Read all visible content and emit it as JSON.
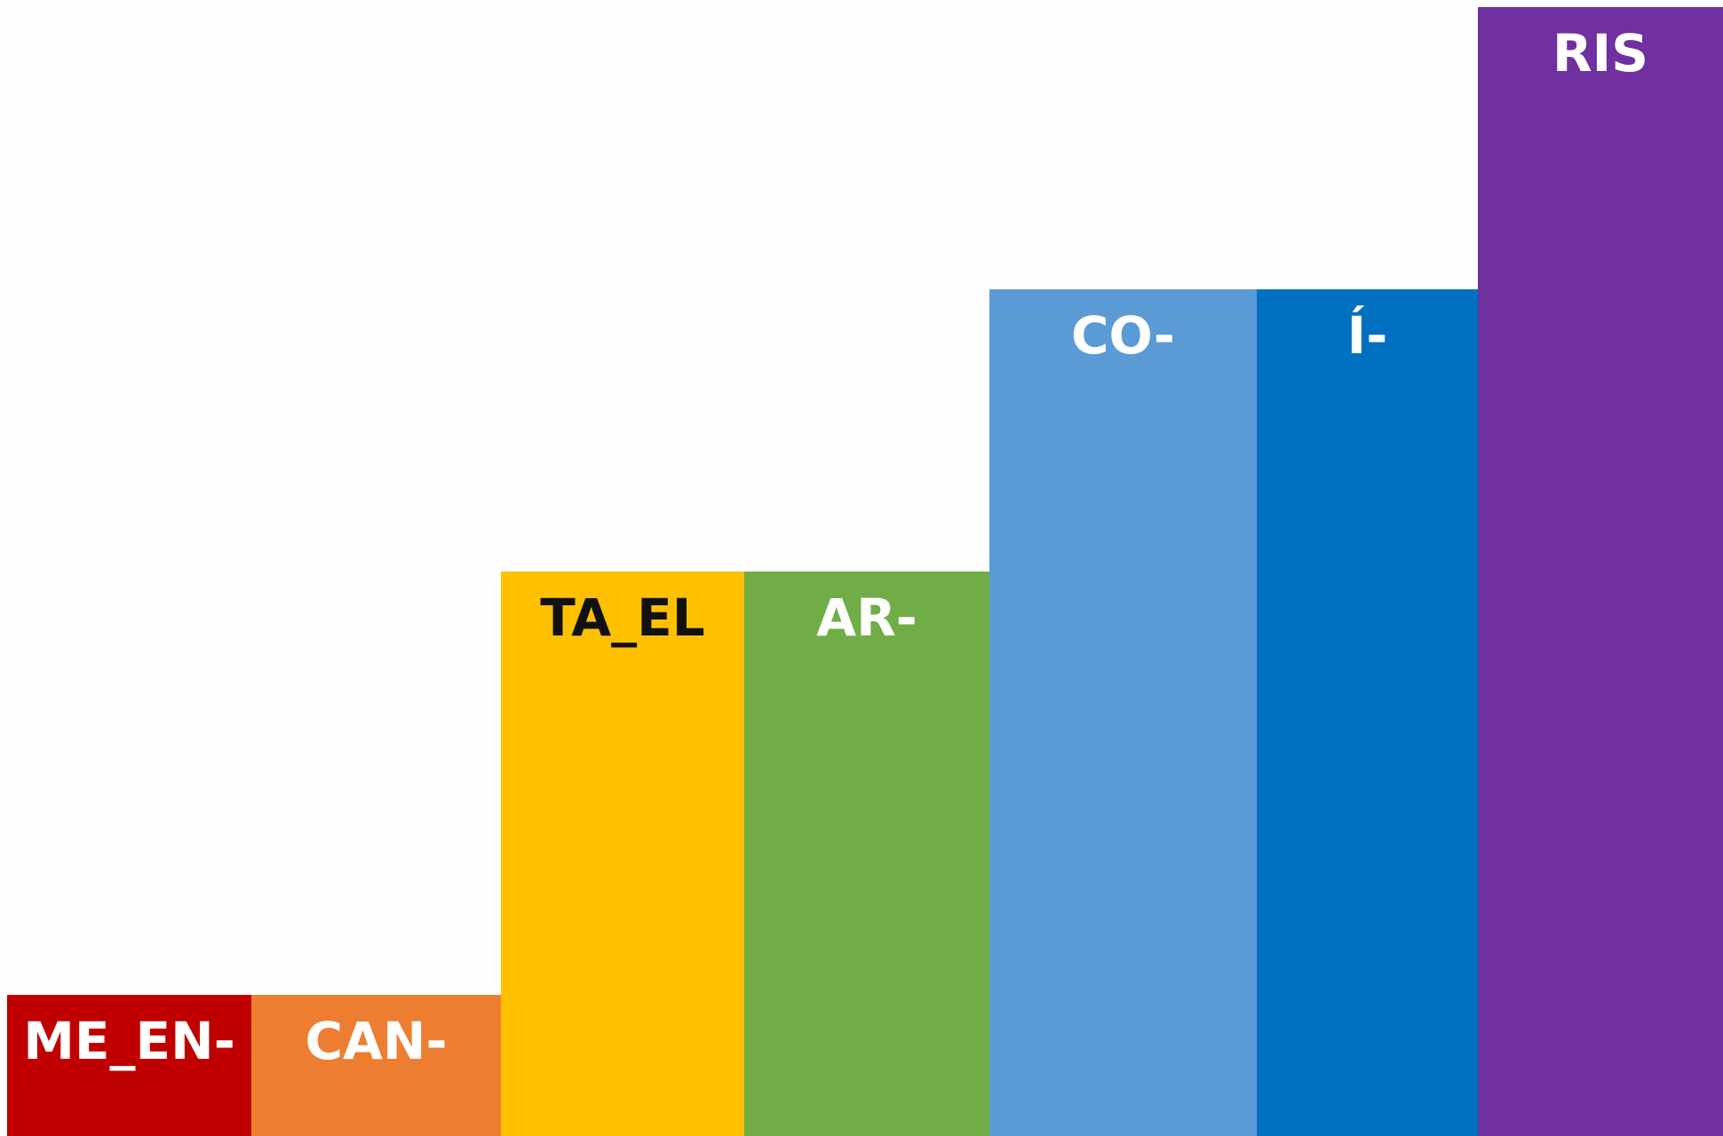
{
  "chart_data": {
    "type": "bar",
    "title": "",
    "xlabel": "",
    "ylabel": "",
    "grid": false,
    "legend": "none",
    "ylim": [
      0,
      4
    ],
    "categories": [
      "ME_EN-",
      "CAN-",
      "TA_EL",
      "AR-",
      "CO-",
      "Í-",
      "RIS"
    ],
    "values": [
      0.5,
      0.5,
      2.0,
      2.0,
      3.0,
      3.0,
      4.0
    ],
    "colors": [
      "#c00000",
      "#ed7d31",
      "#ffc000",
      "#70ad47",
      "#5b9bd5",
      "#0070c0",
      "#7030a0"
    ],
    "label_colors": [
      "#ffffff",
      "#ffffff",
      "#111111",
      "#ffffff",
      "#ffffff",
      "#ffffff",
      "#ffffff"
    ]
  }
}
